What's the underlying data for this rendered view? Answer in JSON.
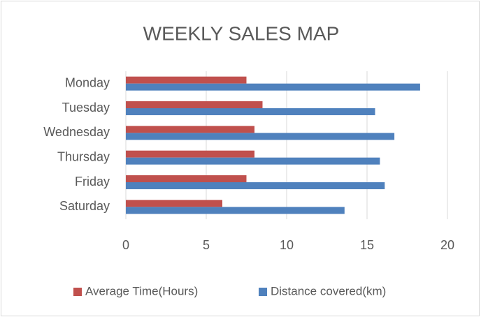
{
  "chart_data": {
    "type": "hbar",
    "title": "WEEKLY SALES MAP",
    "categories": [
      "Monday",
      "Tuesday",
      "Wednesday",
      "Thursday",
      "Friday",
      "Saturday"
    ],
    "series": [
      {
        "name": "Average Time(Hours)",
        "color": "#c0504d",
        "values": [
          7.5,
          8.5,
          8,
          8,
          7.5,
          6
        ]
      },
      {
        "name": "Distance covered(km)",
        "color": "#4f81bd",
        "values": [
          18.3,
          15.5,
          16.7,
          15.8,
          16.1,
          13.6
        ]
      }
    ],
    "xlim": [
      0,
      20
    ],
    "xticks": [
      0,
      5,
      10,
      15,
      20
    ],
    "grid": true,
    "legend": "bottom"
  }
}
